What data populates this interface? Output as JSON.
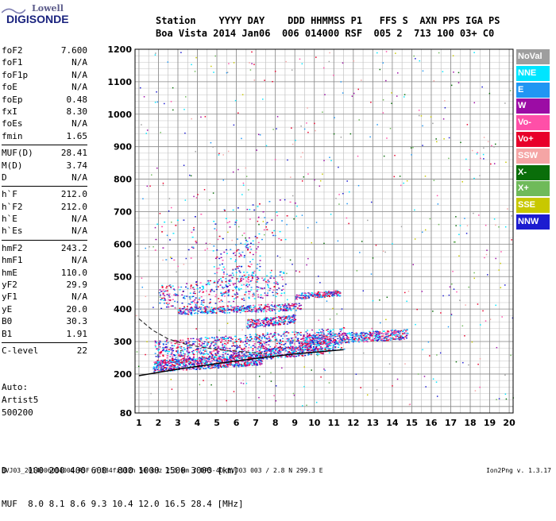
{
  "brand": {
    "top": "Lowell",
    "bottom": "DIGISONDE"
  },
  "header": {
    "labels": "Station    YYYY DAY    DDD HHMMSS P1   FFS S  AXN PPS IGA PS",
    "values": "Boa Vista 2014 Jan06  006 014000 RSF  005 2  713 100 03+ C0"
  },
  "params_group1": [
    {
      "name": "foF2",
      "value": "7.600"
    },
    {
      "name": "foF1",
      "value": "N/A"
    },
    {
      "name": "foF1p",
      "value": "N/A"
    },
    {
      "name": "foE",
      "value": "N/A"
    },
    {
      "name": "foEp",
      "value": "0.48"
    },
    {
      "name": "fxI",
      "value": "8.30"
    },
    {
      "name": "foEs",
      "value": "N/A"
    },
    {
      "name": "fmin",
      "value": "1.65"
    }
  ],
  "params_group2": [
    {
      "name": "MUF(D)",
      "value": "28.41"
    },
    {
      "name": "M(D)",
      "value": "3.74"
    },
    {
      "name": "D",
      "value": "N/A"
    }
  ],
  "params_group3": [
    {
      "name": "h`F",
      "value": "212.0"
    },
    {
      "name": "h`F2",
      "value": "212.0"
    },
    {
      "name": "h`E",
      "value": "N/A"
    },
    {
      "name": "h`Es",
      "value": "N/A"
    }
  ],
  "params_group4": [
    {
      "name": "hmF2",
      "value": "243.2"
    },
    {
      "name": "hmF1",
      "value": "N/A"
    },
    {
      "name": "hmE",
      "value": "110.0"
    },
    {
      "name": "yF2",
      "value": "29.9"
    },
    {
      "name": "yF1",
      "value": "N/A"
    },
    {
      "name": "yE",
      "value": "20.0"
    },
    {
      "name": "B0",
      "value": "30.3"
    },
    {
      "name": "B1",
      "value": "1.91"
    }
  ],
  "params_group5": [
    {
      "name": "C-level",
      "value": "22"
    }
  ],
  "auto": {
    "line1": "Auto:",
    "line2": "Artist5",
    "line3": "500200"
  },
  "muf_table": {
    "d_label": "D",
    "d_values": [
      "100",
      "200",
      "400",
      "600",
      "800",
      "1000",
      "1500",
      "3000"
    ],
    "d_unit": "[km]",
    "muf_label": "MUF",
    "muf_values": [
      "8.0",
      "8.1",
      "8.6",
      "9.3",
      "10.4",
      "12.0",
      "16.5",
      "28.4"
    ],
    "muf_unit": "[MHz]"
  },
  "footer": {
    "left": "BVJ03_2014006014000.RSF / 384fx512h 50 kHz 2.5 km / DPS-4D BVJ03 003 / 2.8 N 299.3 E",
    "right": "Ion2Png v. 1.3.17"
  },
  "legend": [
    {
      "label": "NoVal",
      "color": "#9e9e9e"
    },
    {
      "label": "NNE",
      "color": "#00e5ff"
    },
    {
      "label": "E",
      "color": "#2196f3"
    },
    {
      "label": "W",
      "color": "#9c0ca5"
    },
    {
      "label": "Vo-",
      "color": "#ff4fa8"
    },
    {
      "label": "Vo+",
      "color": "#e8002a"
    },
    {
      "label": "SSW",
      "color": "#f5a5a5"
    },
    {
      "label": "X-",
      "color": "#0a6e0a"
    },
    {
      "label": "X+",
      "color": "#6fba5a"
    },
    {
      "label": "SSE",
      "color": "#c8c800"
    },
    {
      "label": "NNW",
      "color": "#1c1cd0"
    }
  ],
  "chart_data": {
    "type": "scatter",
    "xlim": [
      0.8,
      20.2
    ],
    "ylim": [
      80,
      1200
    ],
    "x_ticks": [
      1,
      2,
      3,
      4,
      5,
      6,
      7,
      8,
      9,
      10,
      11,
      12,
      13,
      14,
      15,
      16,
      17,
      18,
      19,
      20
    ],
    "y_ticks": [
      80,
      100,
      200,
      300,
      400,
      500,
      600,
      700,
      800,
      900,
      1000,
      1100,
      1200
    ],
    "y_tick_labels": [
      "80",
      "",
      "200",
      "300",
      "400",
      "500",
      "600",
      "700",
      "800",
      "900",
      "1000",
      "1100",
      "1200"
    ],
    "grid": true,
    "traces": [
      {
        "kind": "clusters",
        "color_groups": [
          "#9c0ca5",
          "#e8002a",
          "#1c1cd0",
          "#ff4fa8",
          "#00e5ff",
          "#2196f3"
        ],
        "bands": [
          {
            "x": [
              1.7,
              7.3
            ],
            "y": [
              225,
              265
            ],
            "density": 900
          },
          {
            "x": [
              7.3,
              10.8
            ],
            "y": [
              262,
              300
            ],
            "density": 350
          },
          {
            "x": [
              1.8,
              11.5
            ],
            "y": [
              270,
              345
            ],
            "density": 900
          },
          {
            "x": [
              9.5,
              14.8
            ],
            "y": [
              305,
              340
            ],
            "density": 500
          },
          {
            "x": [
              3.0,
              9.3
            ],
            "y": [
              395,
              420
            ],
            "density": 400
          },
          {
            "x": [
              6.5,
              9.0
            ],
            "y": [
              355,
              385
            ],
            "density": 250
          },
          {
            "x": [
              2.0,
              8.5
            ],
            "y": [
              435,
              520
            ],
            "density": 350
          },
          {
            "x": [
              9.0,
              11.3
            ],
            "y": [
              440,
              460
            ],
            "density": 200
          },
          {
            "x": [
              1.8,
              9.0
            ],
            "y": [
              600,
              750
            ],
            "density": 80
          },
          {
            "x": [
              4.8,
              7.2
            ],
            "y": [
              500,
              640
            ],
            "density": 120
          }
        ]
      },
      {
        "kind": "noise",
        "count": 520
      }
    ],
    "curves": [
      {
        "name": "profile",
        "style": "solid",
        "points": [
          [
            1.0,
            195
          ],
          [
            3.0,
            215
          ],
          [
            5.0,
            232
          ],
          [
            7.0,
            248
          ],
          [
            9.0,
            262
          ],
          [
            11.5,
            275
          ]
        ]
      },
      {
        "name": "model",
        "style": "dashed",
        "points": [
          [
            1.0,
            370
          ],
          [
            1.7,
            335
          ],
          [
            2.5,
            308
          ],
          [
            3.5,
            290
          ],
          [
            4.5,
            280
          ],
          [
            5.5,
            272
          ],
          [
            6.5,
            268
          ],
          [
            7.5,
            262
          ]
        ]
      }
    ]
  }
}
